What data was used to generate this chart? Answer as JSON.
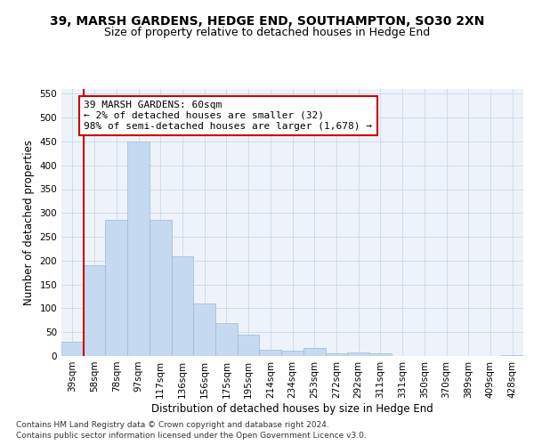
{
  "title1": "39, MARSH GARDENS, HEDGE END, SOUTHAMPTON, SO30 2XN",
  "title2": "Size of property relative to detached houses in Hedge End",
  "xlabel": "Distribution of detached houses by size in Hedge End",
  "ylabel": "Number of detached properties",
  "categories": [
    "39sqm",
    "58sqm",
    "78sqm",
    "97sqm",
    "117sqm",
    "136sqm",
    "156sqm",
    "175sqm",
    "195sqm",
    "214sqm",
    "234sqm",
    "253sqm",
    "272sqm",
    "292sqm",
    "311sqm",
    "331sqm",
    "350sqm",
    "370sqm",
    "389sqm",
    "409sqm",
    "428sqm"
  ],
  "values": [
    30,
    190,
    285,
    450,
    285,
    210,
    110,
    70,
    45,
    13,
    12,
    17,
    5,
    7,
    5,
    0,
    0,
    0,
    0,
    0,
    2
  ],
  "bar_color": "#c5d9f1",
  "bar_edge_color": "#9abbd8",
  "highlight_color": "#cc0000",
  "annotation_text": "39 MARSH GARDENS: 60sqm\n← 2% of detached houses are smaller (32)\n98% of semi-detached houses are larger (1,678) →",
  "annotation_box_facecolor": "#ffffff",
  "annotation_box_edgecolor": "#cc0000",
  "ylim": [
    0,
    560
  ],
  "yticks": [
    0,
    50,
    100,
    150,
    200,
    250,
    300,
    350,
    400,
    450,
    500,
    550
  ],
  "grid_color": "#c8d8ea",
  "background_color": "#eef3fa",
  "footnote1": "Contains HM Land Registry data © Crown copyright and database right 2024.",
  "footnote2": "Contains public sector information licensed under the Open Government Licence v3.0.",
  "title1_fontsize": 10,
  "title2_fontsize": 9,
  "xlabel_fontsize": 8.5,
  "ylabel_fontsize": 8.5,
  "tick_fontsize": 7.5,
  "annotation_fontsize": 8,
  "footnote_fontsize": 6.5
}
